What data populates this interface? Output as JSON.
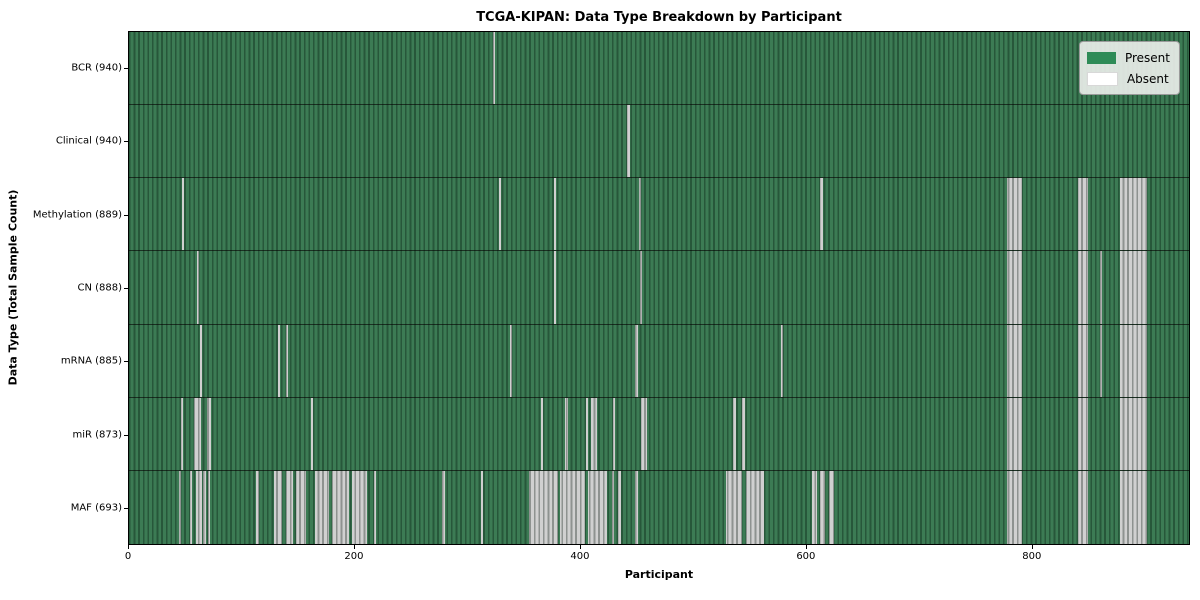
{
  "title": "TCGA-KIPAN: Data Type Breakdown by Participant",
  "colors": {
    "present_base": "#36774f",
    "present_legend": "#2e8b57",
    "absent_base": "#cfcfcf",
    "absent_legend": "#ffffff",
    "row_separator": "#141b14",
    "plot_border": "#000000"
  },
  "chart_data": {
    "type": "heatmap",
    "title": "TCGA-KIPAN: Data Type Breakdown by Participant",
    "xlabel": "Participant",
    "ylabel": "Data Type (Total Sample Count)",
    "x_range": [
      0,
      940
    ],
    "x_ticks": [
      0,
      200,
      400,
      600,
      800
    ],
    "grid": false,
    "legend_position": "upper right",
    "legend": [
      {
        "label": "Present",
        "color": "#2e8b57"
      },
      {
        "label": "Absent",
        "color": "#ffffff"
      }
    ],
    "value_encoding": {
      "present": 1,
      "absent": 0
    },
    "rows": [
      {
        "label": "BCR (940)",
        "data_type": "BCR",
        "total_samples": 940,
        "absent_ranges": [
          [
            323,
            325
          ]
        ]
      },
      {
        "label": "Clinical (940)",
        "data_type": "Clinical",
        "total_samples": 940,
        "absent_ranges": [
          [
            442,
            444
          ]
        ]
      },
      {
        "label": "Methylation (889)",
        "data_type": "Methylation",
        "total_samples": 889,
        "absent_ranges": [
          [
            47,
            49
          ],
          [
            328,
            330
          ],
          [
            377,
            379
          ],
          [
            452,
            454
          ],
          [
            613,
            615
          ],
          [
            779,
            792
          ],
          [
            842,
            850
          ],
          [
            879,
            903
          ]
        ]
      },
      {
        "label": "CN (888)",
        "data_type": "CN",
        "total_samples": 888,
        "absent_ranges": [
          [
            60,
            62
          ],
          [
            377,
            379
          ],
          [
            453,
            455
          ],
          [
            779,
            792
          ],
          [
            842,
            850
          ],
          [
            861,
            863
          ],
          [
            879,
            903
          ]
        ]
      },
      {
        "label": "mRNA (885)",
        "data_type": "mRNA",
        "total_samples": 885,
        "absent_ranges": [
          [
            63,
            65
          ],
          [
            132,
            134
          ],
          [
            139,
            141
          ],
          [
            338,
            340
          ],
          [
            449,
            451
          ],
          [
            578,
            580
          ],
          [
            779,
            792
          ],
          [
            842,
            850
          ],
          [
            861,
            863
          ],
          [
            879,
            903
          ]
        ]
      },
      {
        "label": "miR (873)",
        "data_type": "miR",
        "total_samples": 873,
        "absent_ranges": [
          [
            46,
            48
          ],
          [
            58,
            64
          ],
          [
            69,
            73
          ],
          [
            161,
            163
          ],
          [
            365,
            367
          ],
          [
            387,
            389
          ],
          [
            405,
            407
          ],
          [
            410,
            415
          ],
          [
            429,
            431
          ],
          [
            454,
            459
          ],
          [
            536,
            538
          ],
          [
            544,
            546
          ],
          [
            779,
            792
          ],
          [
            842,
            850
          ],
          [
            879,
            903
          ]
        ]
      },
      {
        "label": "MAF (693)",
        "data_type": "MAF",
        "total_samples": 693,
        "absent_ranges": [
          [
            44,
            46
          ],
          [
            54,
            56
          ],
          [
            59,
            65
          ],
          [
            66,
            68
          ],
          [
            70,
            72
          ],
          [
            113,
            115
          ],
          [
            129,
            136
          ],
          [
            139,
            145
          ],
          [
            148,
            157
          ],
          [
            165,
            177
          ],
          [
            180,
            195
          ],
          [
            198,
            211
          ],
          [
            217,
            219
          ],
          [
            278,
            280
          ],
          [
            312,
            314
          ],
          [
            355,
            380
          ],
          [
            382,
            404
          ],
          [
            407,
            424
          ],
          [
            428,
            430
          ],
          [
            434,
            436
          ],
          [
            449,
            451
          ],
          [
            529,
            544
          ],
          [
            547,
            563
          ],
          [
            606,
            610
          ],
          [
            613,
            617
          ],
          [
            621,
            625
          ],
          [
            779,
            792
          ],
          [
            842,
            850
          ],
          [
            879,
            903
          ]
        ]
      }
    ]
  }
}
